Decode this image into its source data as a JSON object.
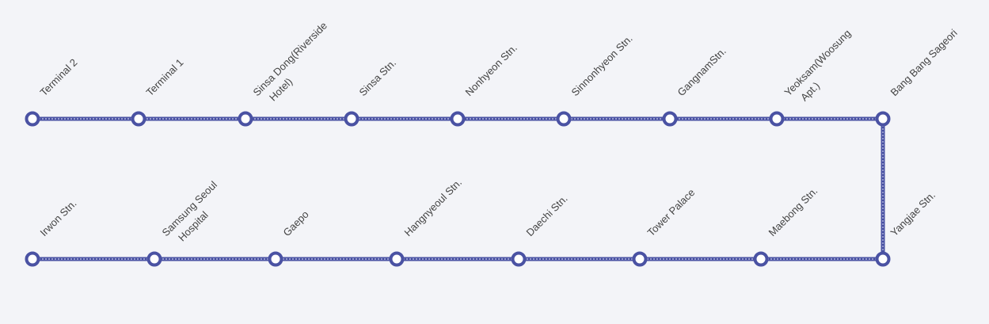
{
  "route": {
    "line_color": "#4a52a3",
    "dash_color": "#c8cbea",
    "stop_fill": "#ffffff",
    "label_color": "#444444",
    "stops_top": [
      {
        "name": [
          "Terminal 2"
        ]
      },
      {
        "name": [
          "Terminal 1"
        ]
      },
      {
        "name": [
          "Sinsa Dong(Riverside",
          "Hotel)"
        ]
      },
      {
        "name": [
          "Sinsa Stn."
        ]
      },
      {
        "name": [
          "Nonhyeon Stn."
        ]
      },
      {
        "name": [
          "Sinnonhyeon Stn."
        ]
      },
      {
        "name": [
          "GangnamStn."
        ]
      },
      {
        "name": [
          "Yeoksam(Woosung",
          "Apt.)"
        ]
      },
      {
        "name": [
          "Bang Bang Sageori"
        ]
      }
    ],
    "stops_bottom": [
      {
        "name": [
          "Irwon Stn."
        ]
      },
      {
        "name": [
          "Samsung Seoul",
          "Hospital"
        ]
      },
      {
        "name": [
          "Gaepo"
        ]
      },
      {
        "name": [
          "Hangnyeoul Stn."
        ]
      },
      {
        "name": [
          "Daechi Stn."
        ]
      },
      {
        "name": [
          "Tower Palace"
        ]
      },
      {
        "name": [
          "Maebong Stn."
        ]
      },
      {
        "name": [
          "Yangjae Stn."
        ]
      }
    ]
  }
}
